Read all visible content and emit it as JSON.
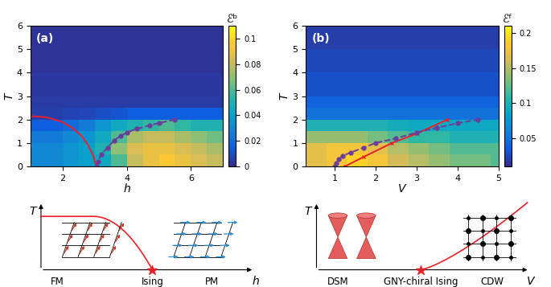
{
  "chart_data": [
    {
      "type": "heatmap",
      "panel_label": "(a)",
      "xlabel": "h",
      "ylabel": "T",
      "xlim": [
        1,
        7
      ],
      "ylim": [
        0,
        6
      ],
      "xticks": [
        2,
        4,
        6
      ],
      "yticks": [
        0,
        1,
        2,
        3,
        4,
        5,
        6
      ],
      "x_edges": [
        1,
        1.5,
        2,
        2.5,
        3,
        3.5,
        4,
        4.5,
        5,
        5.5,
        6,
        6.5,
        7
      ],
      "y_edges": [
        0,
        0.5,
        1,
        1.5,
        2,
        2.5,
        3,
        4,
        5,
        6
      ],
      "cells": [
        [
          0.03,
          0.03,
          0.035,
          0.04,
          0.045,
          0.06,
          0.08,
          0.09,
          0.095,
          0.09,
          0.085,
          0.08
        ],
        [
          0.03,
          0.03,
          0.035,
          0.04,
          0.05,
          0.07,
          0.085,
          0.09,
          0.09,
          0.085,
          0.08,
          0.075
        ],
        [
          0.025,
          0.025,
          0.03,
          0.035,
          0.045,
          0.06,
          0.075,
          0.08,
          0.08,
          0.075,
          0.07,
          0.065
        ],
        [
          0.015,
          0.015,
          0.02,
          0.025,
          0.035,
          0.045,
          0.05,
          0.055,
          0.06,
          0.055,
          0.05,
          0.05
        ],
        [
          0.006,
          0.006,
          0.007,
          0.008,
          0.01,
          0.012,
          0.015,
          0.015,
          0.015,
          0.015,
          0.015,
          0.015
        ],
        [
          0.005,
          0.005,
          0.005,
          0.005,
          0.005,
          0.005,
          0.005,
          0.005,
          0.005,
          0.005,
          0.005,
          0.005
        ],
        [
          0.004,
          0.004,
          0.004,
          0.004,
          0.004,
          0.004,
          0.004,
          0.004,
          0.004,
          0.004,
          0.004,
          0.004
        ],
        [
          0.003,
          0.003,
          0.003,
          0.003,
          0.003,
          0.003,
          0.003,
          0.003,
          0.003,
          0.003,
          0.003,
          0.003
        ],
        [
          0.003,
          0.003,
          0.003,
          0.003,
          0.003,
          0.003,
          0.003,
          0.003,
          0.003,
          0.003,
          0.003,
          0.003
        ]
      ],
      "colorbar": {
        "label": "ℰᵇ",
        "range": [
          0,
          0.11
        ],
        "ticks": [
          0,
          0.02,
          0.04,
          0.06,
          0.08,
          0.1
        ]
      },
      "lines": [
        {
          "color": "#e8202a",
          "line_style": "solid",
          "marker": "none",
          "x": [
            1,
            1.5,
            2,
            2.3,
            2.6,
            2.8,
            2.95,
            3.05
          ],
          "values": [
            2.15,
            2.1,
            1.9,
            1.65,
            1.3,
            0.9,
            0.5,
            0
          ]
        },
        {
          "color": "#6a3d9a",
          "line_style": "dashed",
          "marker": "circle",
          "x": [
            3.05,
            3.1,
            3.2,
            3.4,
            3.6,
            3.8,
            4.0,
            4.3,
            4.7,
            5.0,
            5.5
          ],
          "values": [
            0,
            0.2,
            0.5,
            0.8,
            1.1,
            1.3,
            1.45,
            1.6,
            1.75,
            1.85,
            2.0
          ]
        }
      ]
    },
    {
      "type": "heatmap",
      "panel_label": "(b)",
      "xlabel": "V",
      "ylabel": "T",
      "xlim": [
        0.3,
        5
      ],
      "ylim": [
        0,
        6
      ],
      "xticks": [
        1,
        2,
        3,
        4,
        5
      ],
      "yticks": [
        0,
        1,
        2,
        3,
        4,
        5,
        6
      ],
      "x_edges": [
        0.3,
        0.8,
        1.3,
        1.8,
        2.3,
        2.8,
        3.3,
        3.8,
        4.3,
        4.8,
        5.0
      ],
      "y_edges": [
        0,
        0.5,
        1,
        1.5,
        2,
        2.5,
        3,
        4,
        5,
        6
      ],
      "cells": [
        [
          0.17,
          0.18,
          0.19,
          0.18,
          0.16,
          0.15,
          0.14,
          0.13,
          0.13,
          0.12
        ],
        [
          0.17,
          0.18,
          0.18,
          0.17,
          0.15,
          0.14,
          0.13,
          0.12,
          0.12,
          0.12
        ],
        [
          0.14,
          0.14,
          0.14,
          0.13,
          0.12,
          0.11,
          0.11,
          0.1,
          0.1,
          0.1
        ],
        [
          0.1,
          0.1,
          0.1,
          0.1,
          0.095,
          0.09,
          0.09,
          0.09,
          0.09,
          0.09
        ],
        [
          0.05,
          0.05,
          0.05,
          0.05,
          0.05,
          0.05,
          0.05,
          0.05,
          0.05,
          0.05
        ],
        [
          0.04,
          0.04,
          0.04,
          0.04,
          0.04,
          0.04,
          0.04,
          0.04,
          0.04,
          0.04
        ],
        [
          0.03,
          0.03,
          0.03,
          0.03,
          0.03,
          0.03,
          0.03,
          0.03,
          0.03,
          0.03
        ],
        [
          0.025,
          0.025,
          0.025,
          0.025,
          0.025,
          0.025,
          0.025,
          0.025,
          0.025,
          0.025
        ],
        [
          0.02,
          0.02,
          0.02,
          0.02,
          0.02,
          0.02,
          0.02,
          0.02,
          0.02,
          0.02
        ]
      ],
      "colorbar": {
        "label": "ℰᶠ",
        "range": [
          0.01,
          0.21
        ],
        "ticks": [
          0.05,
          0.1,
          0.15,
          0.2
        ]
      },
      "lines": [
        {
          "color": "#e8202a",
          "line_style": "solid",
          "marker": "x",
          "x": [
            1.25,
            1.7,
            2.4,
            3.0,
            3.75
          ],
          "values": [
            0,
            0.4,
            1.0,
            1.4,
            2.0
          ]
        },
        {
          "color": "#6a3d9a",
          "line_style": "dashed",
          "marker": "circle",
          "x": [
            1,
            1.05,
            1.1,
            1.2,
            1.4,
            1.7,
            2.0,
            2.5,
            3.0,
            3.5,
            4.0,
            4.5
          ],
          "values": [
            0,
            0.15,
            0.3,
            0.45,
            0.6,
            0.8,
            1.0,
            1.2,
            1.45,
            1.65,
            1.85,
            2.0
          ]
        }
      ]
    }
  ],
  "diagrams": [
    {
      "kind": "ising",
      "xlabel": "h",
      "ylabel": "T",
      "labels": [
        "FM",
        "Ising",
        "PM"
      ]
    },
    {
      "kind": "gny",
      "xlabel": "V",
      "ylabel": "T",
      "labels": [
        "DSM",
        "GNY-chiral Ising",
        "CDW"
      ]
    }
  ]
}
